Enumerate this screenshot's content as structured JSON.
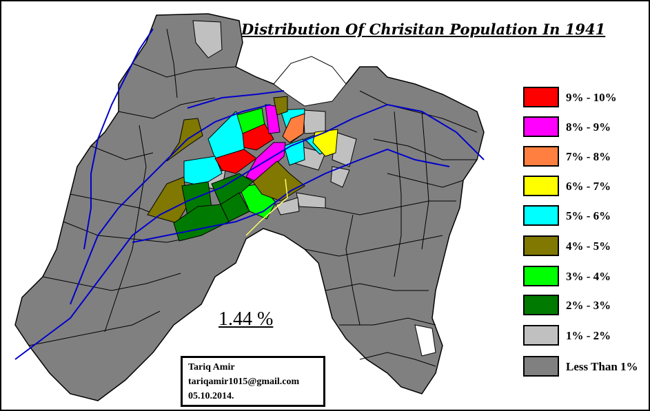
{
  "title": "Distribution Of Chrisitan Population In 1941",
  "total_share": "1.44 %",
  "legend": [
    {
      "label": "9% - 10%",
      "color": "#ff0000"
    },
    {
      "label": "8% - 9%",
      "color": "#ff00ff"
    },
    {
      "label": "7% - 8%",
      "color": "#ff7f40"
    },
    {
      "label": "6% - 7%",
      "color": "#ffff00"
    },
    {
      "label": "5% - 6%",
      "color": "#00ffff"
    },
    {
      "label": "4% - 5%",
      "color": "#807800"
    },
    {
      "label": "3% - 4%",
      "color": "#00ff00"
    },
    {
      "label": "2% - 3%",
      "color": "#007a00"
    },
    {
      "label": "1% - 2%",
      "color": "#c0c0c0"
    },
    {
      "label": "Less Than 1%",
      "color": "#808080"
    }
  ],
  "credit": {
    "name": "Tariq Amir",
    "email": "tariqamir1015@gmail.com",
    "date": "05.10.2014."
  },
  "colors": {
    "district_border": "#000000",
    "river": "#0000cc",
    "boundary_line": "#ffff66"
  }
}
